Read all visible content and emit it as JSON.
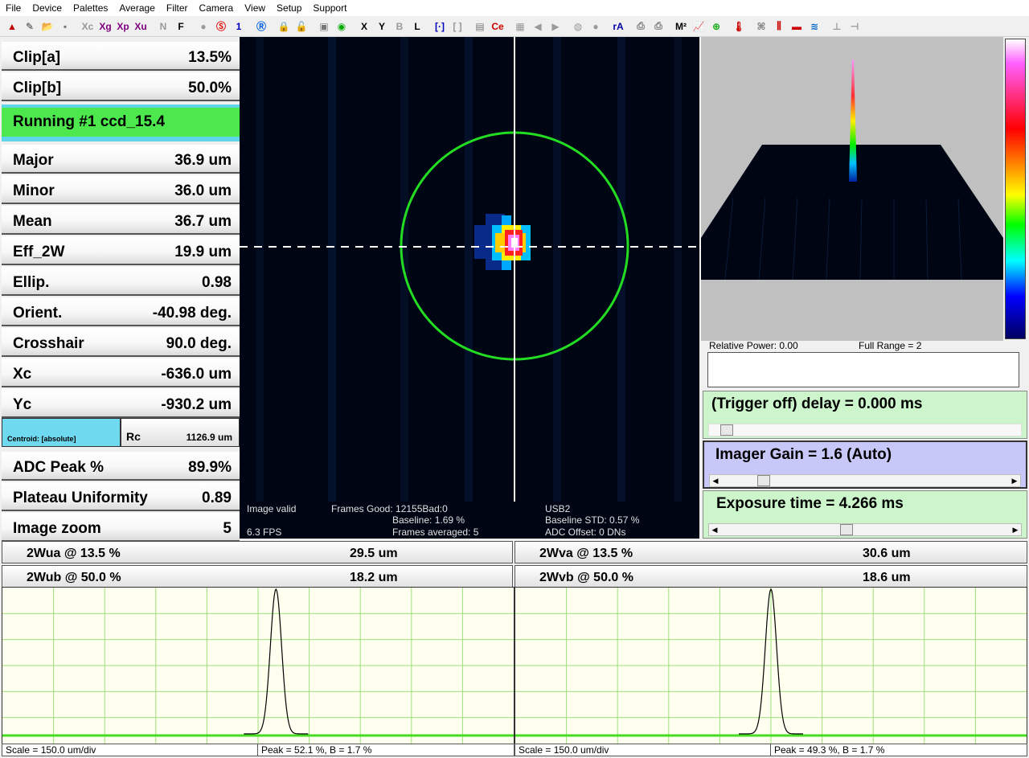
{
  "menu": [
    "File",
    "Device",
    "Palettes",
    "Average",
    "Filter",
    "Camera",
    "View",
    "Setup",
    "Support"
  ],
  "toolbar": {
    "items": [
      {
        "name": "up-arrow-icon",
        "glyph": "▲",
        "color": "#c00000"
      },
      {
        "name": "pencil-icon",
        "glyph": "✎",
        "color": "#333"
      },
      {
        "name": "open-folder-icon",
        "glyph": "📂",
        "color": "#c90"
      },
      {
        "name": "save-icon",
        "glyph": "▪",
        "color": "#777"
      },
      {
        "name": "sep",
        "glyph": ""
      },
      {
        "name": "xc-button",
        "glyph": "Xc",
        "color": "#999"
      },
      {
        "name": "xg-button",
        "glyph": "Xg",
        "color": "#800080"
      },
      {
        "name": "xp-button",
        "glyph": "Xp",
        "color": "#800080"
      },
      {
        "name": "xu-button",
        "glyph": "Xu",
        "color": "#800080"
      },
      {
        "name": "sep",
        "glyph": ""
      },
      {
        "name": "n-button",
        "glyph": "N",
        "color": "#999"
      },
      {
        "name": "f-button",
        "glyph": "F",
        "color": "#000"
      },
      {
        "name": "sep",
        "glyph": ""
      },
      {
        "name": "gray-circle-icon",
        "glyph": "●",
        "color": "#999"
      },
      {
        "name": "s-red-icon",
        "glyph": "Ⓢ",
        "color": "#e00000"
      },
      {
        "name": "one-button",
        "glyph": "1",
        "color": "#0000c0"
      },
      {
        "name": "sep",
        "glyph": ""
      },
      {
        "name": "r-blue-icon",
        "glyph": "Ⓡ",
        "color": "#0060e0"
      },
      {
        "name": "sep",
        "glyph": ""
      },
      {
        "name": "lock-icon",
        "glyph": "🔒",
        "color": "#333"
      },
      {
        "name": "unlock-icon",
        "glyph": "🔓",
        "color": "#999"
      },
      {
        "name": "sep",
        "glyph": ""
      },
      {
        "name": "frame-icon",
        "glyph": "▣",
        "color": "#777"
      },
      {
        "name": "beam-icon",
        "glyph": "◉",
        "color": "#0a0"
      },
      {
        "name": "sep",
        "glyph": ""
      },
      {
        "name": "x-button",
        "glyph": "X",
        "color": "#000"
      },
      {
        "name": "y-button",
        "glyph": "Y",
        "color": "#000"
      },
      {
        "name": "b-button",
        "glyph": "B",
        "color": "#999"
      },
      {
        "name": "l-button",
        "glyph": "L",
        "color": "#000"
      },
      {
        "name": "sep",
        "glyph": ""
      },
      {
        "name": "bracket-blue-icon",
        "glyph": "[·]",
        "color": "#0000c0"
      },
      {
        "name": "bracket-gray-icon",
        "glyph": "[ ]",
        "color": "#999"
      },
      {
        "name": "sep",
        "glyph": ""
      },
      {
        "name": "film-icon",
        "glyph": "▤",
        "color": "#777"
      },
      {
        "name": "ce-icon",
        "glyph": "Ce",
        "color": "#c00"
      },
      {
        "name": "sep",
        "glyph": ""
      },
      {
        "name": "grid-icon",
        "glyph": "▦",
        "color": "#999"
      },
      {
        "name": "left-arrow-icon",
        "glyph": "◀",
        "color": "#999"
      },
      {
        "name": "right-arrow-icon",
        "glyph": "▶",
        "color": "#999"
      },
      {
        "name": "sep",
        "glyph": ""
      },
      {
        "name": "capture-icon",
        "glyph": "◍",
        "color": "#999"
      },
      {
        "name": "record-icon",
        "glyph": "●",
        "color": "#999"
      },
      {
        "name": "sep",
        "glyph": ""
      },
      {
        "name": "ra-button",
        "glyph": "rA",
        "color": "#0000a0"
      },
      {
        "name": "sep",
        "glyph": ""
      },
      {
        "name": "print-icon",
        "glyph": "⎙",
        "color": "#777"
      },
      {
        "name": "print-preview-icon",
        "glyph": "⎙",
        "color": "#777"
      },
      {
        "name": "sep",
        "glyph": ""
      },
      {
        "name": "m2-icon",
        "glyph": "M²",
        "color": "#000"
      },
      {
        "name": "chart-icon",
        "glyph": "📈",
        "color": "#c00"
      },
      {
        "name": "target-icon",
        "glyph": "⊕",
        "color": "#0a0"
      },
      {
        "name": "sep",
        "glyph": ""
      },
      {
        "name": "thermometer-icon",
        "glyph": "🌡",
        "color": "#c00"
      },
      {
        "name": "sep",
        "glyph": ""
      },
      {
        "name": "camera-icon",
        "glyph": "⌘",
        "color": "#777"
      },
      {
        "name": "bars-icon",
        "glyph": "⫼",
        "color": "#c00"
      },
      {
        "name": "red-line-icon",
        "glyph": "▬",
        "color": "#c00"
      },
      {
        "name": "graph-icon",
        "glyph": "≋",
        "color": "#06c"
      },
      {
        "name": "sep",
        "glyph": ""
      },
      {
        "name": "pin-icon",
        "glyph": "⊥",
        "color": "#999"
      },
      {
        "name": "plug-icon",
        "glyph": "⊣",
        "color": "#999"
      }
    ]
  },
  "left_rows": [
    {
      "name": "clip-a",
      "label": "Clip[a]",
      "value": "13.5%"
    },
    {
      "name": "clip-b",
      "label": "Clip[b]",
      "value": "50.0%"
    }
  ],
  "status": "Running #1 ccd_15.4",
  "measure_rows": [
    {
      "name": "major",
      "label": "Major",
      "value": "36.9 um"
    },
    {
      "name": "minor",
      "label": "Minor",
      "value": "36.0 um"
    },
    {
      "name": "mean",
      "label": "Mean",
      "value": "36.7 um"
    },
    {
      "name": "eff-2w",
      "label": "Eff_2W",
      "value": "19.9 um"
    },
    {
      "name": "ellip",
      "label": "Ellip.",
      "value": "0.98"
    },
    {
      "name": "orient",
      "label": "Orient.",
      "value": "-40.98 deg."
    },
    {
      "name": "crosshair",
      "label": "Crosshair",
      "value": "90.0 deg."
    },
    {
      "name": "xc",
      "label": "Xc",
      "value": "-636.0 um"
    },
    {
      "name": "yc",
      "label": "Yc",
      "value": "-930.2 um"
    }
  ],
  "centroid": {
    "label": "Centroid: [absolute]",
    "rc_label": "Rc",
    "rc_value": "1126.9 um"
  },
  "lower_rows": [
    {
      "name": "adc-peak",
      "label": "ADC Peak %",
      "value": "89.9%"
    },
    {
      "name": "plateau-uniformity",
      "label": "Plateau Uniformity",
      "value": "0.89"
    },
    {
      "name": "image-zoom",
      "label": "Image zoom",
      "value": "5"
    }
  ],
  "info": {
    "image_valid": "Image valid",
    "fps": "6.3 FPS",
    "frames_good": "Frames Good: 12155Bad:0",
    "baseline": "Baseline: 1.69 %",
    "frames_averaged": "Frames averaged: 5",
    "usb": "USB2",
    "baseline_std": "Baseline STD:  0.57 %",
    "adc_offset": "ADC Offset: 0 DNs"
  },
  "view3d": {
    "relative_power": "Relative Power: 0.00",
    "full_range": "Full Range = 2"
  },
  "controls": {
    "trigger": "(Trigger off) delay = 0.000 ms",
    "gain": "Imager Gain = 1.6  (Auto)",
    "exposure": "Exposure time = 4.266 ms",
    "trigger_color": "#ccf5cc",
    "gain_color": "#c8c8f8",
    "exposure_color": "#ccf5cc",
    "trigger_level": 0.0,
    "gain_level": 0.13,
    "exposure_level": 0.43
  },
  "widths": [
    {
      "name": "2wua",
      "label": "2Wua @ 13.5 %",
      "value": "29.5 um"
    },
    {
      "name": "2wub",
      "label": "2Wub @ 50.0 %",
      "value": "18.2 um"
    },
    {
      "name": "2wva",
      "label": "2Wva @ 13.5 %",
      "value": "30.6 um"
    },
    {
      "name": "2wvb",
      "label": "2Wvb @ 50.0 %",
      "value": "18.6 um"
    }
  ],
  "profiles": [
    {
      "scale": "Scale = 150.0 um/div",
      "peak": "Peak = 52.1 %,  B = 1.7 %",
      "center": 0.535
    },
    {
      "scale": "Scale = 150.0 um/div",
      "peak": "Peak = 49.3 %,  B = 1.7 %",
      "center": 0.5
    }
  ]
}
